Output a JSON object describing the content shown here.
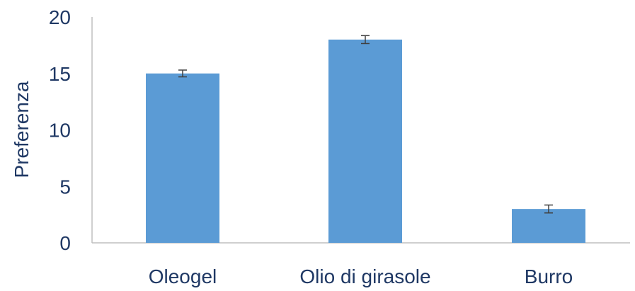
{
  "chart_data": {
    "type": "bar",
    "categories": [
      "Oleogel",
      "Olio di girasole",
      "Burro"
    ],
    "series": [
      {
        "values": [
          15,
          18,
          3
        ],
        "error": [
          0.3,
          0.35,
          0.35
        ]
      }
    ],
    "title": "",
    "xlabel": "",
    "ylabel": "Preferenza",
    "ylim": [
      0,
      20
    ],
    "yticks": [
      0,
      5,
      10,
      15,
      20
    ],
    "grid": false,
    "legend": "none",
    "colors": {
      "bar": "#5b9bd5",
      "error_bar": "#404040",
      "axis": "#bfbfbf",
      "text": "#1f3864"
    }
  }
}
